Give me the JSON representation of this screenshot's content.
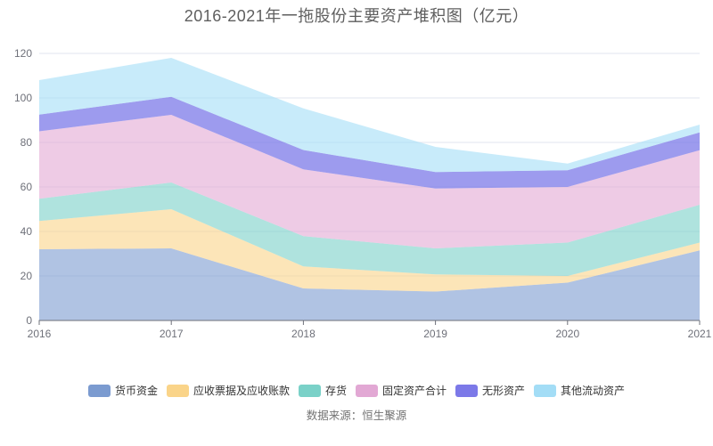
{
  "source_note": "数据来源：恒生聚源",
  "style": {
    "background": "#ffffff",
    "axis_color": "#6E7079",
    "grid_color": "#E0E4EF",
    "title_color": "#5E5E5E",
    "label_color": "#6E7079",
    "legend_text_color": "#333333",
    "source_color": "#737373"
  },
  "chart_data": {
    "type": "area",
    "stacked": true,
    "title": "2016-2021年一拖股份主要资产堆积图（亿元）",
    "xlabel": "",
    "ylabel": "",
    "categories": [
      "2016",
      "2017",
      "2018",
      "2019",
      "2020",
      "2021"
    ],
    "series": [
      {
        "name": "货币资金",
        "color": "#7B9BD0",
        "fill_opacity": 0.6,
        "values": [
          32.0,
          32.4,
          14.4,
          13.0,
          17.0,
          31.5
        ]
      },
      {
        "name": "应收票据及应收账款",
        "color": "#FAD489",
        "fill_opacity": 0.6,
        "values": [
          12.7,
          17.6,
          9.9,
          7.7,
          3.0,
          3.5
        ]
      },
      {
        "name": "存货",
        "color": "#7AD1C8",
        "fill_opacity": 0.6,
        "values": [
          10.0,
          12.0,
          13.6,
          11.7,
          15.0,
          17.0
        ]
      },
      {
        "name": "固定资产合计",
        "color": "#E2A8D4",
        "fill_opacity": 0.6,
        "values": [
          30.3,
          30.4,
          30.0,
          26.9,
          25.0,
          24.5
        ]
      },
      {
        "name": "无形资产",
        "color": "#7C79E8",
        "fill_opacity": 0.75,
        "values": [
          7.5,
          8.1,
          8.7,
          7.4,
          7.5,
          8.0
        ]
      },
      {
        "name": "其他流动资产",
        "color": "#A3DDF6",
        "fill_opacity": 0.6,
        "values": [
          15.5,
          17.5,
          18.7,
          11.3,
          3.0,
          3.5
        ]
      }
    ],
    "stacked_totals": [
      108.0,
      118.0,
      95.3,
      78.0,
      70.5,
      88.0
    ],
    "ylim": [
      0,
      120
    ],
    "yticks": [
      0,
      20,
      40,
      60,
      80,
      100,
      120
    ],
    "grid": true,
    "legend_position": "bottom"
  }
}
